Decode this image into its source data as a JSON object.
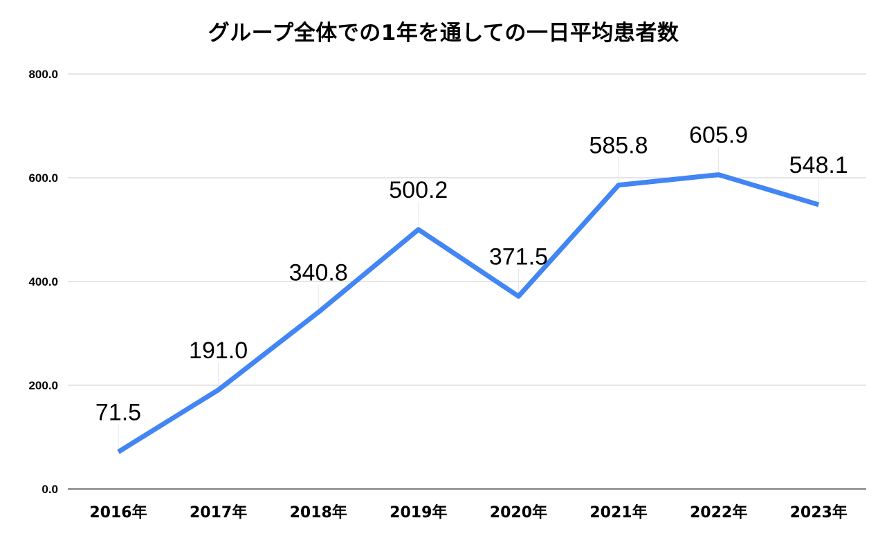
{
  "chart_data": {
    "type": "line",
    "title": "グループ全体での1年を通しての一日平均患者数",
    "xlabel": "",
    "ylabel": "",
    "categories": [
      "2016年",
      "2017年",
      "2018年",
      "2019年",
      "2020年",
      "2021年",
      "2022年",
      "2023年"
    ],
    "series": [
      {
        "values": [
          71.5,
          191.0,
          340.8,
          500.2,
          371.5,
          585.8,
          605.9,
          548.1
        ],
        "value_labels": [
          "71.5",
          "191.0",
          "340.8",
          "500.2",
          "371.5",
          "585.8",
          "605.9",
          "548.1"
        ],
        "color": "#4285f4"
      }
    ],
    "ylim": [
      0,
      800
    ],
    "y_ticks": [
      0,
      200,
      400,
      600,
      800
    ],
    "y_tick_labels": [
      "0.0",
      "200.0",
      "400.0",
      "600.0",
      "800.0"
    ],
    "grid": true,
    "legend": "none",
    "colors": {
      "line": "#4285f4",
      "grid": "#cccccc",
      "text": "#000000"
    }
  }
}
